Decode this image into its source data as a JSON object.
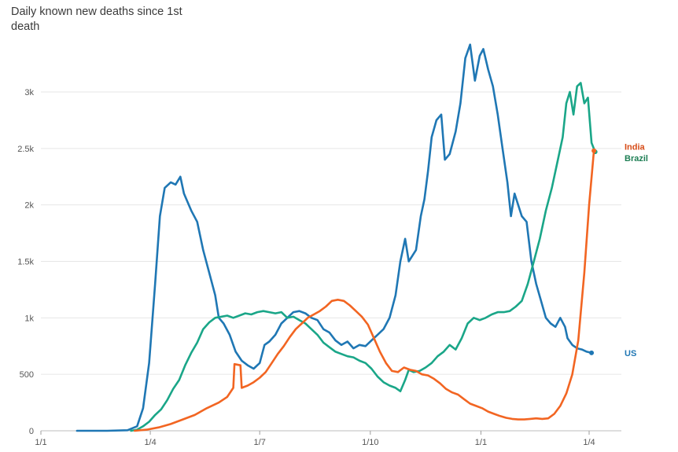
{
  "chart_data": {
    "type": "line",
    "title": "Daily known new deaths since 1st death",
    "xlabel": "",
    "ylabel": "",
    "x_ticks": [
      "1/1",
      "1/4",
      "1/7",
      "1/10",
      "1/1",
      "1/4"
    ],
    "y_ticks": [
      "0",
      "500",
      "1k",
      "1.5k",
      "2k",
      "2.5k",
      "3k"
    ],
    "ylim": [
      0,
      3500
    ],
    "grid": true,
    "legend": "end-of-line labels",
    "x_unit": "days since 1 Jan 2020",
    "xlim": [
      0,
      480
    ],
    "series": [
      {
        "name": "US",
        "color": "#1f77b4",
        "points": [
          [
            30,
            0
          ],
          [
            55,
            0
          ],
          [
            72,
            5
          ],
          [
            80,
            40
          ],
          [
            85,
            200
          ],
          [
            90,
            600
          ],
          [
            95,
            1300
          ],
          [
            99,
            1900
          ],
          [
            103,
            2150
          ],
          [
            108,
            2200
          ],
          [
            112,
            2180
          ],
          [
            116,
            2250
          ],
          [
            119,
            2100
          ],
          [
            125,
            1950
          ],
          [
            130,
            1850
          ],
          [
            135,
            1600
          ],
          [
            140,
            1400
          ],
          [
            145,
            1200
          ],
          [
            148,
            1000
          ],
          [
            152,
            950
          ],
          [
            157,
            850
          ],
          [
            162,
            700
          ],
          [
            167,
            620
          ],
          [
            172,
            580
          ],
          [
            177,
            550
          ],
          [
            182,
            600
          ],
          [
            186,
            760
          ],
          [
            190,
            790
          ],
          [
            195,
            850
          ],
          [
            200,
            950
          ],
          [
            205,
            1000
          ],
          [
            210,
            1050
          ],
          [
            215,
            1060
          ],
          [
            220,
            1040
          ],
          [
            225,
            1000
          ],
          [
            230,
            980
          ],
          [
            235,
            900
          ],
          [
            240,
            870
          ],
          [
            245,
            800
          ],
          [
            250,
            760
          ],
          [
            255,
            790
          ],
          [
            260,
            730
          ],
          [
            265,
            760
          ],
          [
            270,
            750
          ],
          [
            275,
            800
          ],
          [
            280,
            850
          ],
          [
            285,
            900
          ],
          [
            290,
            1000
          ],
          [
            295,
            1200
          ],
          [
            299,
            1500
          ],
          [
            303,
            1700
          ],
          [
            306,
            1500
          ],
          [
            309,
            1550
          ],
          [
            312,
            1600
          ],
          [
            316,
            1900
          ],
          [
            319,
            2050
          ],
          [
            322,
            2300
          ],
          [
            325,
            2600
          ],
          [
            329,
            2750
          ],
          [
            333,
            2800
          ],
          [
            336,
            2400
          ],
          [
            340,
            2450
          ],
          [
            345,
            2650
          ],
          [
            349,
            2900
          ],
          [
            353,
            3300
          ],
          [
            357,
            3420
          ],
          [
            361,
            3100
          ],
          [
            365,
            3320
          ],
          [
            368,
            3380
          ],
          [
            372,
            3200
          ],
          [
            376,
            3050
          ],
          [
            380,
            2800
          ],
          [
            384,
            2500
          ],
          [
            388,
            2200
          ],
          [
            391,
            1900
          ],
          [
            394,
            2100
          ],
          [
            397,
            2000
          ],
          [
            400,
            1900
          ],
          [
            404,
            1850
          ],
          [
            408,
            1500
          ],
          [
            412,
            1300
          ],
          [
            416,
            1150
          ],
          [
            420,
            1000
          ],
          [
            424,
            950
          ],
          [
            428,
            920
          ],
          [
            432,
            1000
          ],
          [
            436,
            920
          ],
          [
            438,
            820
          ],
          [
            442,
            760
          ],
          [
            446,
            730
          ],
          [
            450,
            720
          ],
          [
            454,
            700
          ],
          [
            458,
            690
          ]
        ]
      },
      {
        "name": "Brazil",
        "color": "#1aa688",
        "points": [
          [
            75,
            0
          ],
          [
            80,
            10
          ],
          [
            85,
            40
          ],
          [
            90,
            80
          ],
          [
            95,
            140
          ],
          [
            100,
            190
          ],
          [
            105,
            270
          ],
          [
            110,
            370
          ],
          [
            115,
            450
          ],
          [
            120,
            580
          ],
          [
            125,
            690
          ],
          [
            130,
            780
          ],
          [
            135,
            900
          ],
          [
            140,
            960
          ],
          [
            145,
            1000
          ],
          [
            150,
            1010
          ],
          [
            155,
            1020
          ],
          [
            160,
            1000
          ],
          [
            165,
            1020
          ],
          [
            170,
            1040
          ],
          [
            175,
            1030
          ],
          [
            180,
            1050
          ],
          [
            185,
            1060
          ],
          [
            190,
            1050
          ],
          [
            195,
            1040
          ],
          [
            200,
            1050
          ],
          [
            205,
            1000
          ],
          [
            210,
            1010
          ],
          [
            215,
            980
          ],
          [
            220,
            950
          ],
          [
            225,
            900
          ],
          [
            230,
            850
          ],
          [
            235,
            780
          ],
          [
            240,
            740
          ],
          [
            245,
            700
          ],
          [
            250,
            680
          ],
          [
            255,
            660
          ],
          [
            260,
            650
          ],
          [
            265,
            620
          ],
          [
            270,
            600
          ],
          [
            275,
            550
          ],
          [
            280,
            480
          ],
          [
            285,
            430
          ],
          [
            290,
            400
          ],
          [
            295,
            380
          ],
          [
            299,
            350
          ],
          [
            303,
            450
          ],
          [
            306,
            540
          ],
          [
            310,
            520
          ],
          [
            315,
            530
          ],
          [
            320,
            560
          ],
          [
            325,
            600
          ],
          [
            330,
            660
          ],
          [
            335,
            700
          ],
          [
            340,
            760
          ],
          [
            345,
            720
          ],
          [
            350,
            820
          ],
          [
            355,
            950
          ],
          [
            360,
            1000
          ],
          [
            365,
            980
          ],
          [
            370,
            1000
          ],
          [
            375,
            1030
          ],
          [
            380,
            1050
          ],
          [
            385,
            1050
          ],
          [
            390,
            1060
          ],
          [
            395,
            1100
          ],
          [
            400,
            1150
          ],
          [
            405,
            1300
          ],
          [
            410,
            1500
          ],
          [
            415,
            1700
          ],
          [
            420,
            1950
          ],
          [
            425,
            2150
          ],
          [
            430,
            2400
          ],
          [
            434,
            2600
          ],
          [
            437,
            2900
          ],
          [
            440,
            3000
          ],
          [
            443,
            2800
          ],
          [
            446,
            3050
          ],
          [
            449,
            3080
          ],
          [
            452,
            2900
          ],
          [
            455,
            2950
          ],
          [
            458,
            2550
          ],
          [
            461,
            2470
          ]
        ]
      },
      {
        "name": "India",
        "color": "#f26522",
        "points": [
          [
            78,
            0
          ],
          [
            88,
            10
          ],
          [
            98,
            30
          ],
          [
            108,
            60
          ],
          [
            118,
            100
          ],
          [
            128,
            140
          ],
          [
            138,
            200
          ],
          [
            148,
            250
          ],
          [
            155,
            300
          ],
          [
            160,
            380
          ],
          [
            161,
            590
          ],
          [
            166,
            580
          ],
          [
            167,
            380
          ],
          [
            172,
            400
          ],
          [
            177,
            430
          ],
          [
            182,
            470
          ],
          [
            187,
            520
          ],
          [
            192,
            600
          ],
          [
            197,
            680
          ],
          [
            202,
            750
          ],
          [
            207,
            830
          ],
          [
            212,
            900
          ],
          [
            217,
            950
          ],
          [
            222,
            1000
          ],
          [
            227,
            1030
          ],
          [
            232,
            1060
          ],
          [
            237,
            1100
          ],
          [
            242,
            1150
          ],
          [
            247,
            1160
          ],
          [
            252,
            1150
          ],
          [
            257,
            1110
          ],
          [
            262,
            1060
          ],
          [
            267,
            1010
          ],
          [
            272,
            940
          ],
          [
            277,
            820
          ],
          [
            282,
            700
          ],
          [
            287,
            600
          ],
          [
            292,
            530
          ],
          [
            297,
            520
          ],
          [
            302,
            560
          ],
          [
            307,
            540
          ],
          [
            312,
            530
          ],
          [
            317,
            500
          ],
          [
            322,
            490
          ],
          [
            327,
            460
          ],
          [
            332,
            420
          ],
          [
            337,
            370
          ],
          [
            342,
            340
          ],
          [
            347,
            320
          ],
          [
            352,
            280
          ],
          [
            357,
            240
          ],
          [
            362,
            220
          ],
          [
            367,
            200
          ],
          [
            372,
            170
          ],
          [
            377,
            150
          ],
          [
            382,
            130
          ],
          [
            387,
            115
          ],
          [
            392,
            105
          ],
          [
            397,
            100
          ],
          [
            402,
            100
          ],
          [
            407,
            105
          ],
          [
            412,
            110
          ],
          [
            417,
            105
          ],
          [
            422,
            110
          ],
          [
            427,
            150
          ],
          [
            432,
            220
          ],
          [
            437,
            330
          ],
          [
            442,
            500
          ],
          [
            447,
            800
          ],
          [
            452,
            1400
          ],
          [
            456,
            2000
          ],
          [
            460,
            2480
          ]
        ]
      }
    ],
    "end_labels": [
      {
        "series": "India",
        "text": "India",
        "color": "#d64b16"
      },
      {
        "series": "Brazil",
        "text": "Brazil",
        "color": "#1f7f55"
      },
      {
        "series": "US",
        "text": "US",
        "color": "#1f77b4"
      }
    ]
  }
}
